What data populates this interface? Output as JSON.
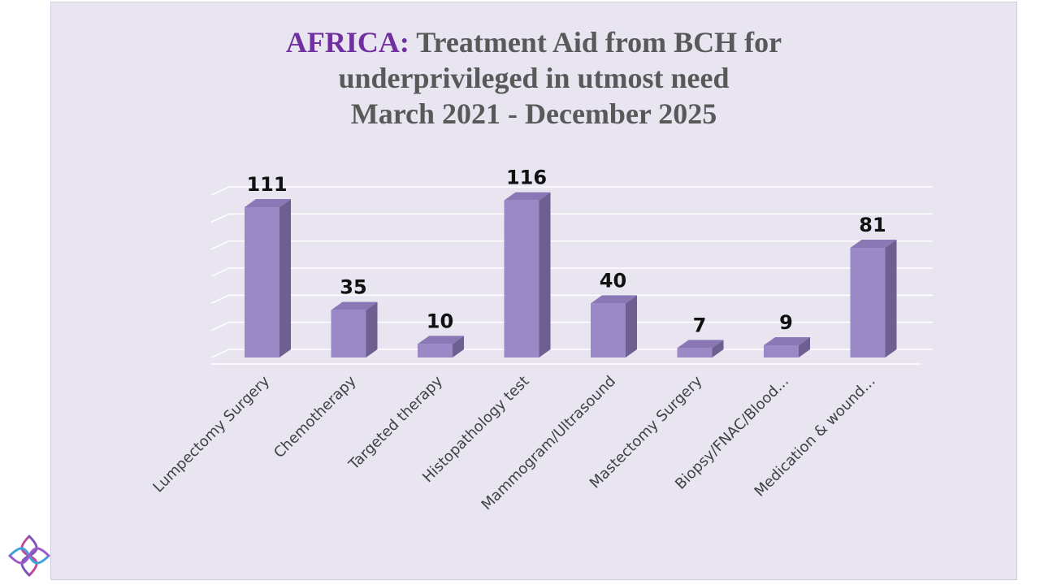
{
  "title": {
    "lead": "AFRICA:",
    "line1_rest": " Treatment Aid from BCH for",
    "line2": "underprivileged in utmost need",
    "line3": "March 2021 - December 2025"
  },
  "colors": {
    "bar_front": "#9b88c6",
    "bar_side": "#6e5f91",
    "bar_top": "#8a78b6",
    "panel": "#e8e5f1",
    "title_accent": "#7030a0",
    "title_text": "#595959",
    "gridline": "#ffffff"
  },
  "logo": {
    "icon": "brand-knot-logo-icon"
  },
  "chart_data": {
    "type": "bar",
    "style": "3d-column",
    "title": "AFRICA: Treatment Aid from BCH for underprivileged in utmost need March 2021 - December 2025",
    "categories": [
      "Lumpectomy Surgery",
      "Chemotherapy",
      "Targeted therapy",
      "Histopathology test",
      "Mammogram/Ultrasound",
      "Mastectomy Surgery",
      "Biopsy/FNAC/Blood...",
      "Medication & wound..."
    ],
    "values": [
      111,
      35,
      10,
      116,
      40,
      7,
      9,
      81
    ],
    "data_labels": [
      "111",
      "35",
      "10",
      "116",
      "40",
      "7",
      "9",
      "81"
    ],
    "xlabel": "",
    "ylabel": "",
    "ylim": [
      0,
      135
    ],
    "grid": true,
    "legend": "none"
  }
}
